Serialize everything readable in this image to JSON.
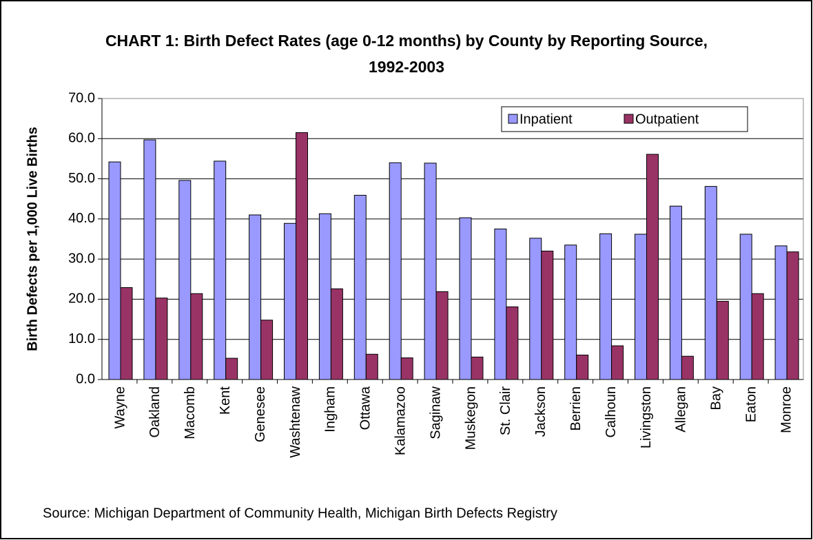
{
  "chart_data": {
    "type": "bar",
    "title": "CHART 1: Birth Defect Rates (age 0-12 months) by County by Reporting Source, 1992-2003",
    "y_label": "Birth Defects per 1,000 Live Births",
    "source": "Source: Michigan Department of Community Health, Michigan Birth Defects Registry",
    "categories": [
      "Wayne",
      "Oakland",
      "Macomb",
      "Kent",
      "Genesee",
      "Washtenaw",
      "Ingham",
      "Ottawa",
      "Kalamazoo",
      "Saginaw",
      "Muskegon",
      "St. Clair",
      "Jackson",
      "Berrien",
      "Calhoun",
      "Livingston",
      "Allegan",
      "Bay",
      "Eaton",
      "Monroe"
    ],
    "series": [
      {
        "name": "Inpatient",
        "color": "#9999ff",
        "values": [
          54.2,
          59.7,
          49.6,
          54.4,
          41.0,
          38.9,
          41.3,
          45.9,
          54.0,
          53.9,
          40.3,
          37.5,
          35.2,
          33.5,
          36.3,
          36.2,
          43.2,
          48.1,
          36.2,
          33.3
        ]
      },
      {
        "name": "Outpatient",
        "color": "#993366",
        "values": [
          22.9,
          20.3,
          21.4,
          5.3,
          14.8,
          61.5,
          22.6,
          6.3,
          5.4,
          21.9,
          5.6,
          18.1,
          32.0,
          6.1,
          8.4,
          56.1,
          5.8,
          19.5,
          21.4,
          31.8
        ]
      }
    ],
    "ylim": [
      0,
      70
    ],
    "yticks": [
      {
        "value": 0,
        "label": "0.0"
      },
      {
        "value": 10,
        "label": "10.0"
      },
      {
        "value": 20,
        "label": "20.0"
      },
      {
        "value": 30,
        "label": "30.0"
      },
      {
        "value": 40,
        "label": "40.0"
      },
      {
        "value": 50,
        "label": "50.0"
      },
      {
        "value": 60,
        "label": "60.0"
      },
      {
        "value": 70,
        "label": "70.0"
      }
    ],
    "grid": true,
    "legend": "top-right"
  }
}
